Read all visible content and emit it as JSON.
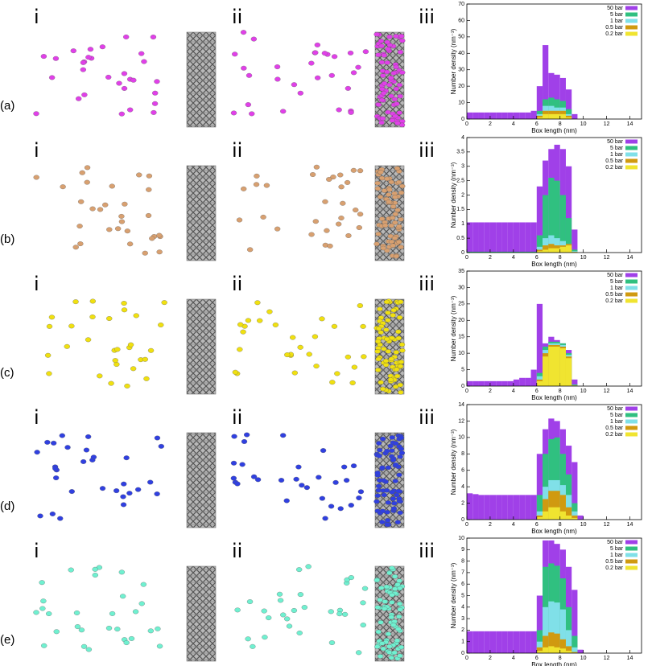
{
  "panel_labels": [
    "i",
    "ii",
    "iii"
  ],
  "rows": [
    {
      "label": "(a)",
      "molecule_color": "#e040e8"
    },
    {
      "label": "(b)",
      "molecule_color": "#d8a070"
    },
    {
      "label": "(c)",
      "molecule_color": "#f0e010"
    },
    {
      "label": "(d)",
      "molecule_color": "#3040e0"
    },
    {
      "label": "(e)",
      "molecule_color": "#70f0d0"
    }
  ],
  "chart_data": [
    {
      "type": "histogram",
      "xlabel": "Box length (nm)",
      "ylabel": "Number density (nm⁻³)",
      "legend": "upper right",
      "bins": [
        0,
        0.5,
        1,
        1.5,
        2,
        2.5,
        3,
        3.5,
        4,
        4.5,
        5,
        5.5,
        6,
        6.5,
        7,
        7.5,
        8,
        8.5,
        9,
        9.5,
        10
      ],
      "xlim": [
        0,
        15
      ],
      "xticks": [
        0,
        2,
        4,
        6,
        8,
        10,
        12,
        14
      ],
      "ylim": [
        0,
        70
      ],
      "yticks": [
        0,
        10,
        20,
        30,
        40,
        50,
        60,
        70
      ],
      "series": [
        {
          "name": "50 bar",
          "color": "#a040e8",
          "values": [
            4,
            4,
            4,
            4,
            4,
            4,
            4,
            4,
            4,
            4,
            4,
            5,
            20,
            45,
            28,
            27,
            25,
            18,
            3,
            0
          ]
        },
        {
          "name": "5 bar",
          "color": "#30c080",
          "values": [
            0,
            0,
            0,
            0,
            0,
            0,
            0,
            0,
            0,
            0,
            0,
            0,
            5,
            12,
            13,
            12,
            11,
            6,
            0,
            0
          ]
        },
        {
          "name": "1 bar",
          "color": "#80e0e8",
          "values": [
            0,
            0,
            0,
            0,
            0,
            0,
            0,
            0,
            0,
            0,
            0,
            0,
            3,
            8,
            8,
            7,
            7,
            3,
            0,
            0
          ]
        },
        {
          "name": "0.5 bar",
          "color": "#d09a10",
          "values": [
            0,
            0,
            0,
            0,
            0,
            0,
            0,
            0,
            0,
            0,
            0,
            0,
            2,
            5,
            5,
            5,
            5,
            2,
            0,
            0
          ]
        },
        {
          "name": "0.2 bar",
          "color": "#f0e430",
          "values": [
            0,
            0,
            0,
            0,
            0,
            0,
            0,
            0,
            0,
            0,
            0,
            0,
            1,
            3,
            3,
            3,
            3,
            1,
            0,
            0
          ]
        }
      ]
    },
    {
      "type": "histogram",
      "xlabel": "Box length (nm)",
      "ylabel": "Number density (nm⁻³)",
      "legend": "upper right",
      "bins": [
        0,
        0.5,
        1,
        1.5,
        2,
        2.5,
        3,
        3.5,
        4,
        4.5,
        5,
        5.5,
        6,
        6.5,
        7,
        7.5,
        8,
        8.5,
        9,
        9.5,
        10
      ],
      "xlim": [
        0,
        15
      ],
      "xticks": [
        0,
        2,
        4,
        6,
        8,
        10,
        12,
        14
      ],
      "ylim": [
        0,
        4
      ],
      "yticks": [
        0,
        0.5,
        1,
        1.5,
        2,
        2.5,
        3,
        3.5,
        4
      ],
      "series": [
        {
          "name": "50 bar",
          "color": "#a040e8",
          "values": [
            1.05,
            1.05,
            1.05,
            1.05,
            1.05,
            1.05,
            1.05,
            1.05,
            1.05,
            1.05,
            1.05,
            1.05,
            2.3,
            3.2,
            3.6,
            3.75,
            3.6,
            3.0,
            0.8,
            0
          ]
        },
        {
          "name": "5 bar",
          "color": "#30c080",
          "values": [
            0.03,
            0.03,
            0.03,
            0.03,
            0.03,
            0.03,
            0.03,
            0.03,
            0.03,
            0.03,
            0.03,
            0.03,
            0.6,
            2.0,
            2.6,
            2.5,
            2.0,
            1.2,
            0.1,
            0
          ]
        },
        {
          "name": "1 bar",
          "color": "#80e0e8",
          "values": [
            0,
            0,
            0,
            0,
            0,
            0,
            0,
            0,
            0,
            0,
            0,
            0,
            0.2,
            0.5,
            0.6,
            0.5,
            0.4,
            0.3,
            0.05,
            0
          ]
        },
        {
          "name": "0.5 bar",
          "color": "#d09a10",
          "values": [
            0,
            0,
            0,
            0,
            0,
            0,
            0,
            0,
            0,
            0,
            0,
            0,
            0.1,
            0.25,
            0.3,
            0.25,
            0.25,
            0.3,
            0.02,
            0
          ]
        },
        {
          "name": "0.2 bar",
          "color": "#f0e430",
          "values": [
            0,
            0,
            0,
            0,
            0,
            0,
            0,
            0,
            0,
            0,
            0,
            0,
            0.05,
            0.1,
            0.15,
            0.15,
            0.2,
            0.25,
            0.02,
            0
          ]
        }
      ]
    },
    {
      "type": "histogram",
      "xlabel": "Box length (nm)",
      "ylabel": "Number density (nm⁻³)",
      "legend": "upper right",
      "bins": [
        0,
        0.5,
        1,
        1.5,
        2,
        2.5,
        3,
        3.5,
        4,
        4.5,
        5,
        5.5,
        6,
        6.5,
        7,
        7.5,
        8,
        8.5,
        9,
        9.5,
        10
      ],
      "xlim": [
        0,
        15
      ],
      "xticks": [
        0,
        2,
        4,
        6,
        8,
        10,
        12,
        14
      ],
      "ylim": [
        0,
        35
      ],
      "yticks": [
        0,
        5,
        10,
        15,
        20,
        25,
        30,
        35
      ],
      "series": [
        {
          "name": "50 bar",
          "color": "#a040e8",
          "values": [
            1.5,
            1.5,
            1.5,
            1.5,
            1.5,
            1.5,
            1.5,
            1.5,
            2,
            2.5,
            2.5,
            5,
            25,
            13,
            15,
            14,
            13,
            11,
            2,
            0
          ]
        },
        {
          "name": "5 bar",
          "color": "#30c080",
          "values": [
            0,
            0,
            0,
            0,
            0,
            0,
            0,
            0,
            0,
            0,
            0,
            0,
            4,
            12,
            13.5,
            13.5,
            13,
            10,
            0.5,
            0
          ]
        },
        {
          "name": "1 bar",
          "color": "#80e0e8",
          "values": [
            0,
            0,
            0,
            0,
            0,
            0,
            0,
            0,
            0,
            0,
            0,
            0,
            3,
            11,
            13,
            13,
            12.5,
            9.5,
            0.3,
            0
          ]
        },
        {
          "name": "0.5 bar",
          "color": "#d09a10",
          "values": [
            0,
            0,
            0,
            0,
            0,
            0,
            0,
            0,
            0,
            0,
            0,
            0,
            2,
            10,
            12.5,
            12.5,
            12,
            9,
            0.2,
            0
          ]
        },
        {
          "name": "0.2 bar",
          "color": "#f0e430",
          "values": [
            0,
            0,
            0,
            0,
            0,
            0,
            0,
            0,
            0,
            0,
            0,
            0,
            1.5,
            9,
            12,
            12,
            11.5,
            8.5,
            0.1,
            0
          ]
        }
      ]
    },
    {
      "type": "histogram",
      "xlabel": "Box length (nm)",
      "ylabel": "Number density (nm⁻³)",
      "legend": "upper right",
      "bins": [
        0,
        0.5,
        1,
        1.5,
        2,
        2.5,
        3,
        3.5,
        4,
        4.5,
        5,
        5.5,
        6,
        6.5,
        7,
        7.5,
        8,
        8.5,
        9,
        9.5,
        10
      ],
      "xlim": [
        0,
        15
      ],
      "xticks": [
        0,
        2,
        4,
        6,
        8,
        10,
        12,
        14
      ],
      "ylim": [
        0,
        14
      ],
      "yticks": [
        0,
        2,
        4,
        6,
        8,
        10,
        12,
        14
      ],
      "series": [
        {
          "name": "50 bar",
          "color": "#a040e8",
          "values": [
            3.2,
            3.1,
            3,
            3,
            3,
            3,
            3,
            3,
            3,
            3,
            3,
            3,
            8,
            11,
            12.3,
            12,
            11,
            9,
            7,
            0.5
          ]
        },
        {
          "name": "5 bar",
          "color": "#30c080",
          "values": [
            0,
            0,
            0,
            0,
            0,
            0,
            0,
            0,
            0,
            0,
            0,
            0,
            3,
            8,
            9.8,
            10,
            8,
            5.5,
            2,
            0
          ]
        },
        {
          "name": "1 bar",
          "color": "#80e0e8",
          "values": [
            0,
            0,
            0,
            0,
            0,
            0,
            0,
            0,
            0,
            0,
            0,
            0,
            1,
            4,
            4.8,
            4.8,
            4.2,
            3,
            1,
            0
          ]
        },
        {
          "name": "0.5 bar",
          "color": "#d09a10",
          "values": [
            0,
            0,
            0,
            0,
            0,
            0,
            0,
            0,
            0,
            0,
            0,
            0,
            0.5,
            2.5,
            3.5,
            3.5,
            3,
            1.5,
            0.5,
            0
          ]
        },
        {
          "name": "0.2 bar",
          "color": "#f0e430",
          "values": [
            0,
            0,
            0,
            0,
            0,
            0,
            0,
            0,
            0,
            0,
            0,
            0,
            0.3,
            1,
            1.5,
            1.5,
            1,
            0.5,
            0.2,
            0
          ]
        }
      ]
    },
    {
      "type": "histogram",
      "xlabel": "Box length (nm)",
      "ylabel": "Number density (nm⁻³)",
      "legend": "upper right",
      "bins": [
        0,
        0.5,
        1,
        1.5,
        2,
        2.5,
        3,
        3.5,
        4,
        4.5,
        5,
        5.5,
        6,
        6.5,
        7,
        7.5,
        8,
        8.5,
        9,
        9.5,
        10
      ],
      "xlim": [
        0,
        15
      ],
      "xticks": [
        0,
        2,
        4,
        6,
        8,
        10,
        12,
        14
      ],
      "ylim": [
        0,
        10
      ],
      "yticks": [
        0,
        1,
        2,
        3,
        4,
        5,
        6,
        7,
        8,
        9,
        10
      ],
      "series": [
        {
          "name": "50 bar",
          "color": "#a040e8",
          "values": [
            1.9,
            1.9,
            1.9,
            1.9,
            1.9,
            1.9,
            1.9,
            1.9,
            1.9,
            1.9,
            1.9,
            1.9,
            5,
            9.8,
            9.8,
            9.5,
            9,
            7.5,
            5.5,
            0.3
          ]
        },
        {
          "name": "5 bar",
          "color": "#30c080",
          "values": [
            0,
            0,
            0,
            0,
            0,
            0,
            0,
            0,
            0,
            0,
            0,
            0,
            2,
            7.5,
            7.8,
            7.6,
            6.5,
            4,
            1.5,
            0
          ]
        },
        {
          "name": "1 bar",
          "color": "#80e0e8",
          "values": [
            0,
            0,
            0,
            0,
            0,
            0,
            0,
            0,
            0,
            0,
            0,
            0,
            1,
            4,
            4.5,
            4.4,
            3.8,
            2,
            0.5,
            0
          ]
        },
        {
          "name": "0.5 bar",
          "color": "#d09a10",
          "values": [
            0,
            0,
            0,
            0,
            0,
            0,
            0,
            0,
            0,
            0,
            0,
            0,
            0.5,
            1.5,
            1.8,
            1.7,
            1.2,
            0.6,
            0.1,
            0
          ]
        },
        {
          "name": "0.2 bar",
          "color": "#f0e430",
          "values": [
            0,
            0,
            0,
            0,
            0,
            0,
            0,
            0,
            0,
            0,
            0,
            0,
            0.2,
            0.5,
            0.6,
            0.5,
            0.4,
            0.2,
            0.05,
            0
          ]
        }
      ]
    }
  ]
}
